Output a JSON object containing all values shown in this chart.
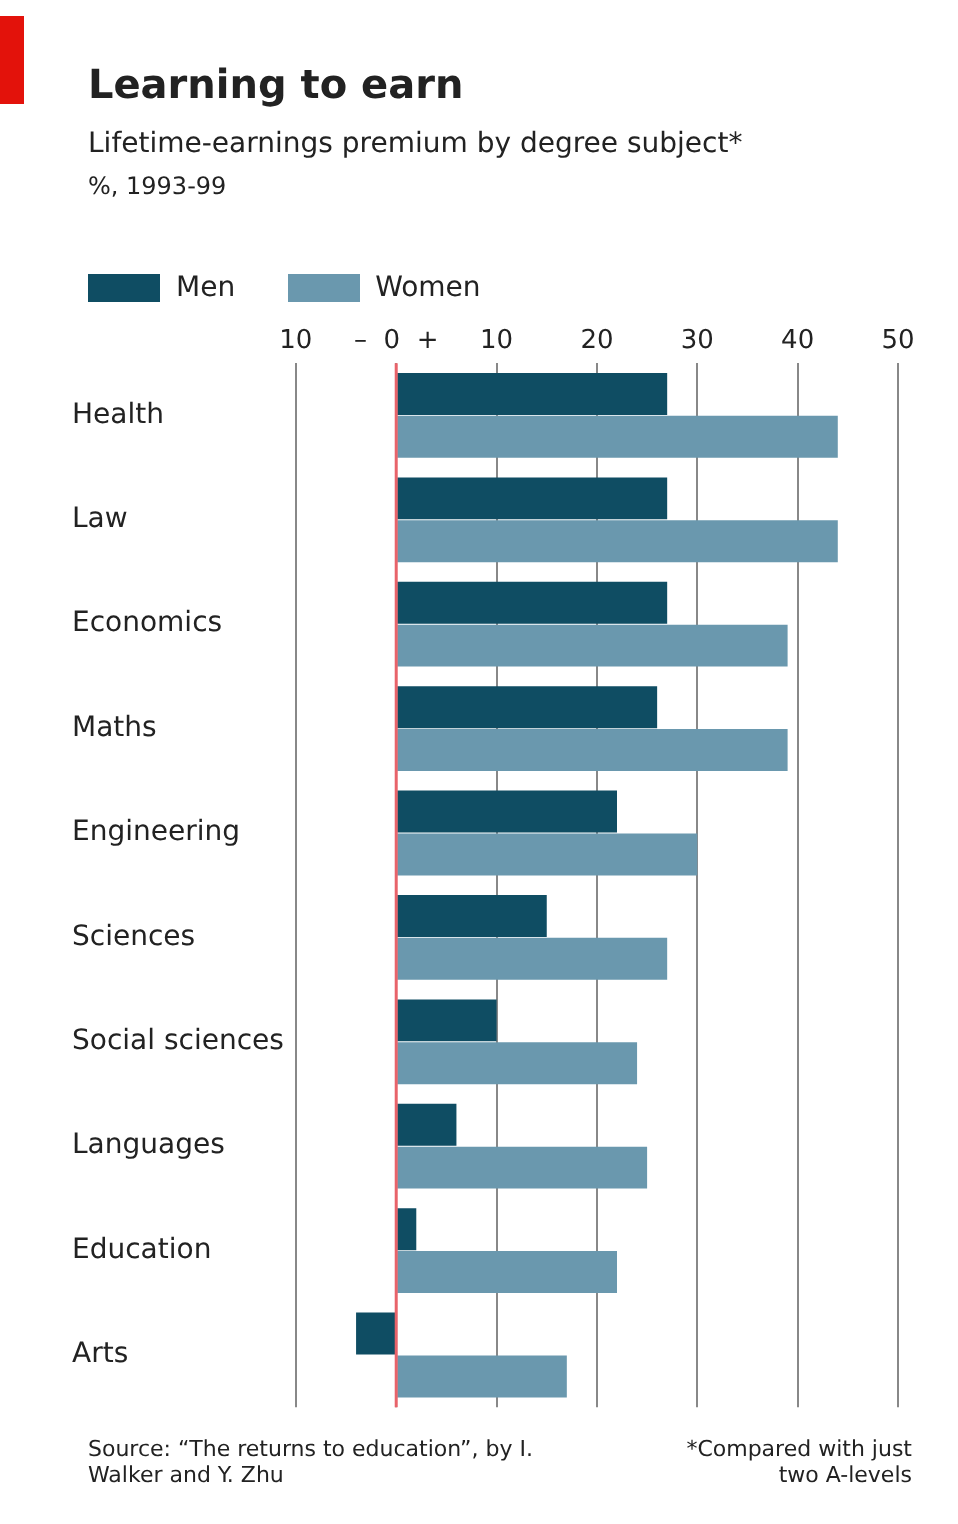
{
  "chart_data": {
    "type": "bar",
    "orientation": "horizontal",
    "title": "Learning to earn",
    "subtitle": "Lifetime-earnings premium by degree subject*",
    "categories": [
      "Health",
      "Law",
      "Economics",
      "Maths",
      "Engineering",
      "Sciences",
      "Social sciences",
      "Languages",
      "Education",
      "Arts"
    ],
    "series": [
      {
        "name": "Men",
        "color": "#0f4d63",
        "values": [
          27,
          27,
          27,
          26,
          22,
          15,
          10,
          6,
          2,
          -4
        ]
      },
      {
        "name": "Women",
        "color": "#6a98ae",
        "values": [
          44,
          44,
          39,
          39,
          30,
          27,
          24,
          25,
          22,
          17
        ]
      }
    ],
    "xlim": [
      -10,
      50
    ],
    "xticks": [
      {
        "value": -10,
        "label": "10"
      },
      {
        "value": 0,
        "label": "–  0  +"
      },
      10,
      20,
      30,
      40,
      50
    ],
    "ref_lines": [
      {
        "axis": "x",
        "value": 0,
        "color": "#e8636a"
      }
    ],
    "grid": "x",
    "legend": "top left",
    "annotations": [
      "%, 1993-99",
      "Source: “The returns to education”, by I. Walker and Y. Zhu",
      "*Compared with just two A-levels"
    ]
  }
}
